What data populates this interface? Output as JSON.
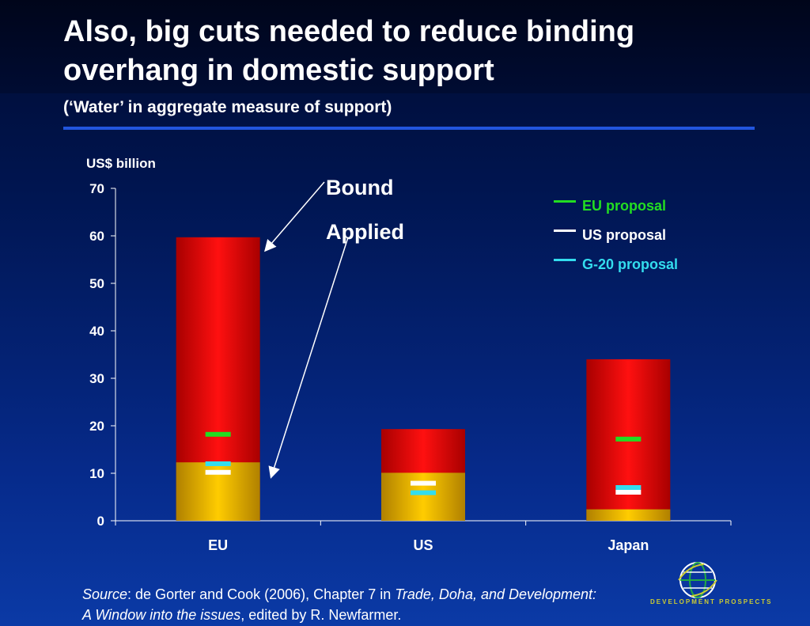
{
  "slide": {
    "title": "Also, big cuts needed to reduce binding overhang in domestic support",
    "subtitle": "(‘Water’ in aggregate measure of support)"
  },
  "annotations": {
    "bound": "Bound",
    "applied": "Applied"
  },
  "legend": {
    "eu": {
      "label": "EU proposal",
      "color": "#22dd22"
    },
    "us": {
      "label": "US proposal",
      "color": "#ffffff"
    },
    "g20": {
      "label": "G-20 proposal",
      "color": "#33ddee"
    }
  },
  "source": {
    "label": "Source",
    "text1": ": de Gorter and Cook (2006), Chapter 7 in ",
    "book": "Trade, Doha, and Development: A Window into the issues",
    "text2": ", edited by R. Newfarmer."
  },
  "logo": {
    "text": "DEVELOPMENT PROSPECTS"
  },
  "chart_data": {
    "type": "bar",
    "ylabel": "US$ billion",
    "ylim": [
      0,
      70
    ],
    "yticks": [
      "0",
      "10",
      "20",
      "30",
      "40",
      "50",
      "60",
      "70"
    ],
    "categories": [
      "EU",
      "US",
      "Japan"
    ],
    "series": [
      {
        "name": "Bound",
        "values": [
          59.7,
          19.3,
          34.0
        ],
        "color": "#e00000"
      },
      {
        "name": "Applied",
        "values": [
          12.3,
          10.1,
          2.4
        ],
        "color": "#e8b400"
      }
    ],
    "proposals": [
      {
        "name": "EU proposal",
        "color": "#22dd22",
        "values": [
          18.2,
          null,
          17.2
        ]
      },
      {
        "name": "US proposal",
        "color": "#ffffff",
        "values": [
          10.2,
          7.9,
          6.0
        ]
      },
      {
        "name": "G-20 proposal",
        "color": "#33ddee",
        "values": [
          12.0,
          5.9,
          7.0
        ]
      }
    ]
  }
}
